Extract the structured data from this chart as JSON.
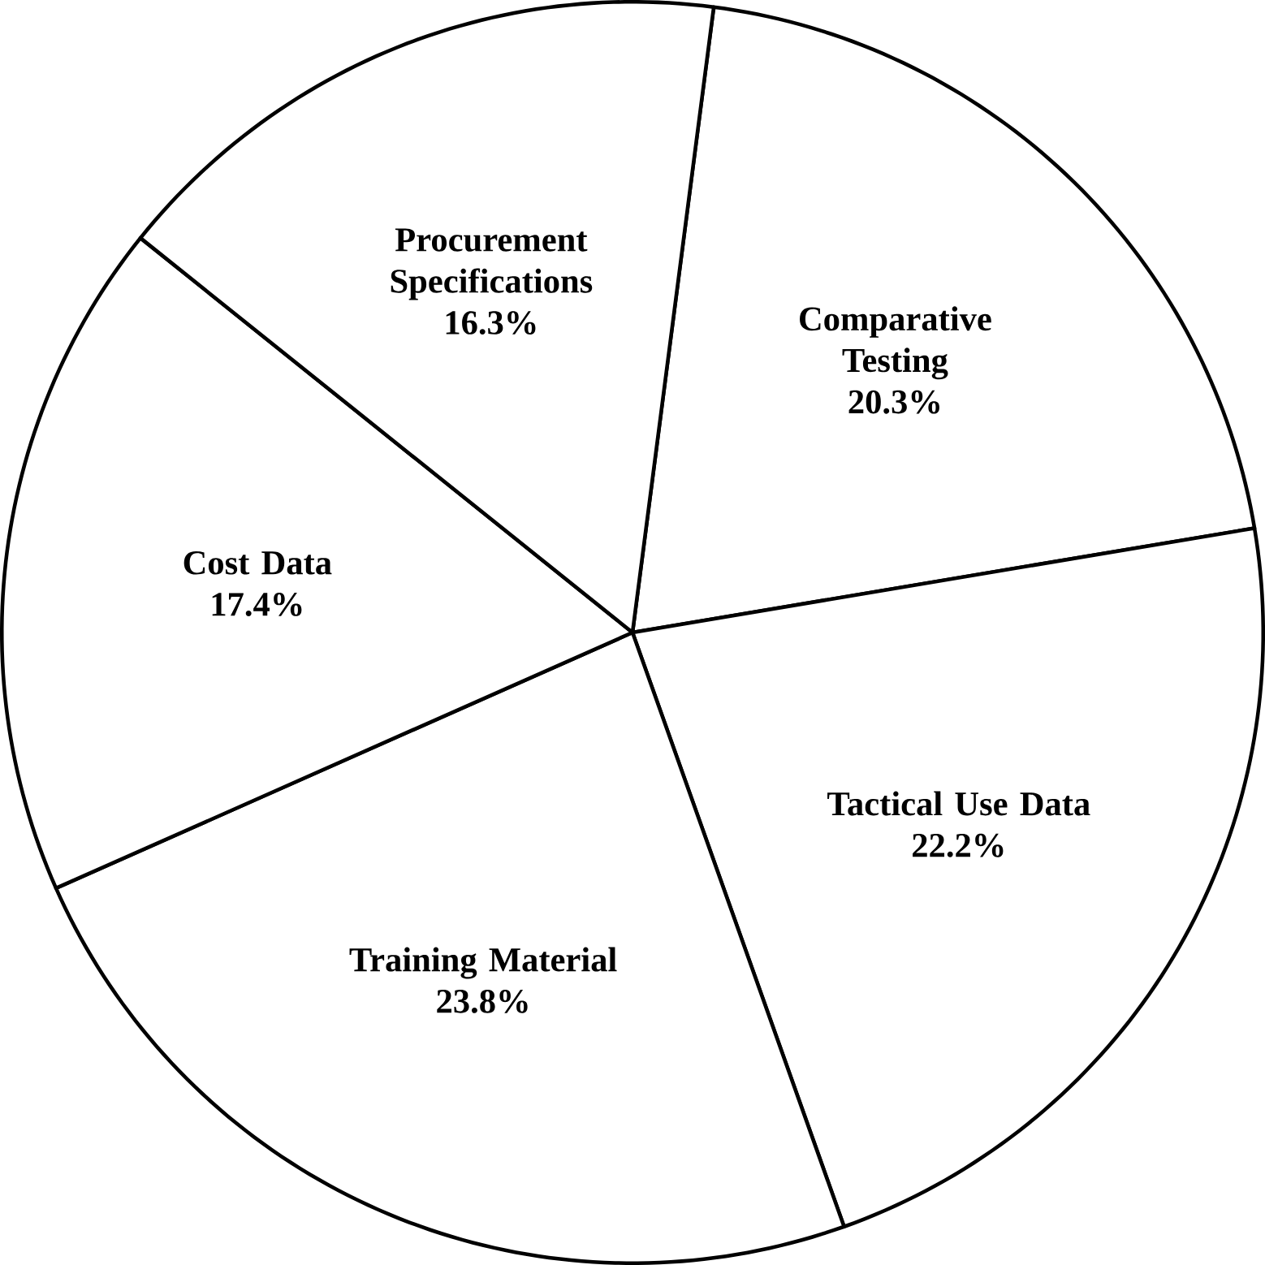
{
  "chart_data": {
    "type": "pie",
    "categories": [
      "Comparative Testing",
      "Tactical Use Data",
      "Training Material",
      "Cost Data",
      "Procurement Specifications"
    ],
    "values": [
      20.3,
      22.2,
      23.8,
      17.4,
      16.3
    ],
    "colors": [
      "#ffffff",
      "#ffffff",
      "#ffffff",
      "#ffffff",
      "#ffffff"
    ],
    "value_labels": [
      "20.3%",
      "22.2%",
      "23.8%",
      "17.4%",
      "16.3%"
    ]
  }
}
